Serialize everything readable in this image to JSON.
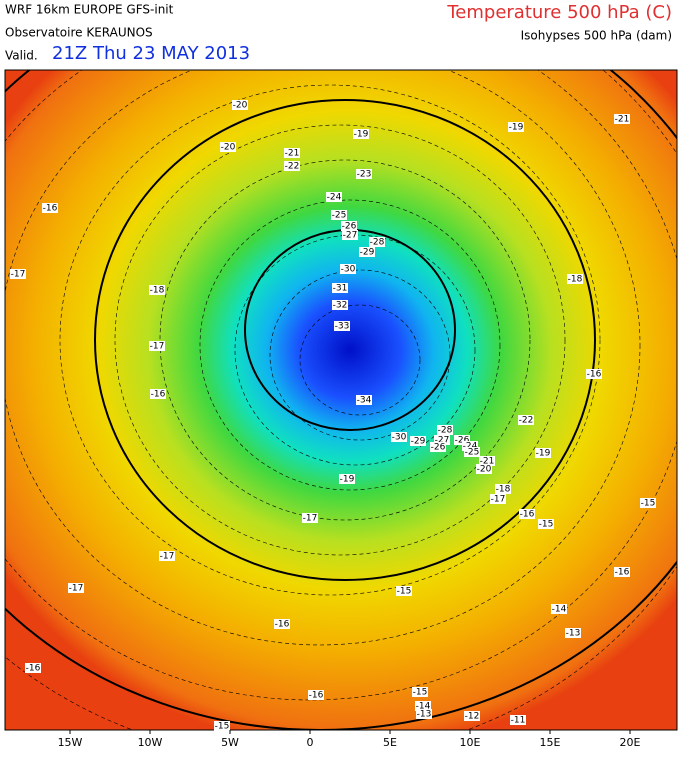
{
  "header": {
    "model": "WRF 16km EUROPE  GFS-init",
    "source": "Observatoire KERAUNOS",
    "valid_prefix": "Valid.",
    "valid_time": "21Z Thu 23 MAY 2013",
    "title": "Temperature 500 hPa (C)",
    "subtitle": "Isohypses 500 hPa (dam)"
  },
  "map": {
    "labels": [
      -20,
      -20,
      -21,
      -22,
      -19,
      -19,
      -21,
      -23,
      -16,
      -24,
      -25,
      -26,
      -27,
      -28,
      -29,
      -17,
      -18,
      -30,
      -31,
      -32,
      -33,
      -18,
      -17,
      -16,
      -16,
      -34,
      -22,
      -28,
      -27,
      -30,
      -29,
      -26,
      -26,
      -24,
      -25,
      -21,
      -20,
      -19,
      -19,
      -18,
      -17,
      -16,
      -15,
      -15,
      -17,
      -17,
      -16,
      -17,
      -15,
      -14,
      -16,
      -13,
      -16,
      -16,
      -15,
      -14,
      -13,
      -12,
      -11,
      -15
    ],
    "axis_labels": [
      "15W",
      "10W",
      "5W",
      "0",
      "5E",
      "10E",
      "15E",
      "20E"
    ]
  }
}
